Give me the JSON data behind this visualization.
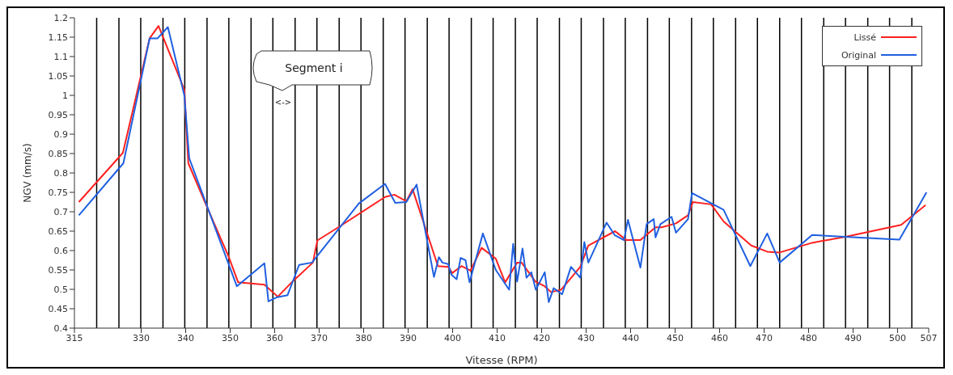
{
  "chart_data": {
    "type": "line",
    "xlabel": "Vitesse (RPM)",
    "ylabel": "NGV (mm/s)",
    "xlim": [
      315,
      507
    ],
    "xticks": [
      315,
      330,
      340,
      350,
      360,
      370,
      380,
      390,
      400,
      410,
      420,
      430,
      440,
      450,
      460,
      470,
      480,
      490,
      500,
      507
    ],
    "ylim": [
      0.4,
      1.2
    ],
    "yticks": [
      0.4,
      0.45,
      0.5,
      0.55,
      0.6,
      0.65,
      0.7,
      0.75,
      0.8,
      0.85,
      0.9,
      0.95,
      1,
      1.05,
      1.1,
      1.15,
      1.2
    ],
    "grid": false,
    "legend": "top right",
    "marker": "none",
    "line_style": "solid",
    "series": [
      {
        "name": "Lissé",
        "color": "#ff2020",
        "x": [
          316,
          325.9,
          331.9,
          333.9,
          339.7,
          340.6,
          344.7,
          349.7,
          351.8,
          357.7,
          360.7,
          364,
          368.6,
          369.6,
          374.6,
          384.8,
          386.9,
          389.6,
          391,
          396.7,
          399,
          399.9,
          402,
          404,
          406.5,
          409.7,
          411.8,
          414.5,
          415.5,
          418.6,
          420.7,
          422.1,
          424.4,
          428.7,
          430.5,
          436.5,
          439,
          442.2,
          445.6,
          447,
          450.2,
          452.9,
          454,
          458.1,
          460.9,
          467.1,
          470.7,
          473.5,
          480.8,
          488.5,
          500.8,
          506.3
        ],
        "values": [
          0.725,
          0.852,
          1.147,
          1.179,
          1.015,
          0.825,
          0.715,
          0.583,
          0.518,
          0.512,
          0.481,
          0.52,
          0.569,
          0.626,
          0.662,
          0.738,
          0.744,
          0.727,
          0.758,
          0.56,
          0.558,
          0.542,
          0.56,
          0.548,
          0.607,
          0.579,
          0.518,
          0.569,
          0.569,
          0.52,
          0.508,
          0.493,
          0.499,
          0.558,
          0.613,
          0.65,
          0.627,
          0.627,
          0.66,
          0.66,
          0.67,
          0.691,
          0.725,
          0.719,
          0.675,
          0.613,
          0.597,
          0.595,
          0.62,
          0.636,
          0.666,
          0.717
        ]
      },
      {
        "name": "Original",
        "color": "#2060e0",
        "x": [
          316,
          326,
          331.9,
          333.7,
          336,
          339.7,
          340.8,
          351.5,
          357.7,
          358.6,
          360.4,
          362.9,
          365.5,
          368.4,
          378.9,
          384.8,
          387.1,
          389.6,
          391.9,
          395.8,
          396.9,
          397.7,
          399,
          399.7,
          400.9,
          401.8,
          402.9,
          403.8,
          406.8,
          409.7,
          412.7,
          413.6,
          414.5,
          415.7,
          416.6,
          417.7,
          418.7,
          420.7,
          421.6,
          422.7,
          424.6,
          426.6,
          428.7,
          429.6,
          430.5,
          434.6,
          436.4,
          438.5,
          439.4,
          442.2,
          443.6,
          445.2,
          445.6,
          446.7,
          449.2,
          450.2,
          452.9,
          453.8,
          460.9,
          466.9,
          470.7,
          473.5,
          480.8,
          500.4,
          506.5
        ],
        "values": [
          0.691,
          0.825,
          1.147,
          1.147,
          1.176,
          1,
          0.838,
          0.508,
          0.567,
          0.469,
          0.479,
          0.485,
          0.563,
          0.569,
          0.721,
          0.772,
          0.723,
          0.725,
          0.77,
          0.532,
          0.583,
          0.569,
          0.565,
          0.538,
          0.526,
          0.581,
          0.575,
          0.518,
          0.644,
          0.55,
          0.499,
          0.617,
          0.52,
          0.605,
          0.53,
          0.544,
          0.499,
          0.544,
          0.467,
          0.503,
          0.487,
          0.558,
          0.53,
          0.622,
          0.569,
          0.672,
          0.64,
          0.627,
          0.679,
          0.556,
          0.668,
          0.681,
          0.634,
          0.668,
          0.687,
          0.646,
          0.681,
          0.748,
          0.705,
          0.56,
          0.644,
          0.569,
          0.64,
          0.628,
          0.75
        ]
      }
    ],
    "ref_lines": [
      {
        "axis": "x",
        "value": 320,
        "color": "#000000"
      },
      {
        "axis": "x",
        "value": 325,
        "color": "#000000"
      },
      {
        "axis": "x",
        "value": 329.9,
        "color": "#000000"
      },
      {
        "axis": "x",
        "value": 334.9,
        "color": "#000000"
      },
      {
        "axis": "x",
        "value": 339.8,
        "color": "#000000"
      },
      {
        "axis": "x",
        "value": 344.8,
        "color": "#000000"
      },
      {
        "axis": "x",
        "value": 349.7,
        "color": "#000000"
      },
      {
        "axis": "x",
        "value": 354.7,
        "color": "#000000"
      },
      {
        "axis": "x",
        "value": 359.6,
        "color": "#000000"
      },
      {
        "axis": "x",
        "value": 364.6,
        "color": "#000000"
      },
      {
        "axis": "x",
        "value": 369.5,
        "color": "#000000"
      },
      {
        "axis": "x",
        "value": 374.5,
        "color": "#000000"
      },
      {
        "axis": "x",
        "value": 379.4,
        "color": "#000000"
      },
      {
        "axis": "x",
        "value": 384.4,
        "color": "#000000"
      },
      {
        "axis": "x",
        "value": 389.3,
        "color": "#000000"
      },
      {
        "axis": "x",
        "value": 394.3,
        "color": "#000000"
      },
      {
        "axis": "x",
        "value": 399.2,
        "color": "#000000"
      },
      {
        "axis": "x",
        "value": 404.2,
        "color": "#000000"
      },
      {
        "axis": "x",
        "value": 409.1,
        "color": "#000000"
      },
      {
        "axis": "x",
        "value": 414.1,
        "color": "#000000"
      },
      {
        "axis": "x",
        "value": 419,
        "color": "#000000"
      },
      {
        "axis": "x",
        "value": 424,
        "color": "#000000"
      },
      {
        "axis": "x",
        "value": 428.9,
        "color": "#000000"
      },
      {
        "axis": "x",
        "value": 433.9,
        "color": "#000000"
      },
      {
        "axis": "x",
        "value": 438.8,
        "color": "#000000"
      },
      {
        "axis": "x",
        "value": 443.8,
        "color": "#000000"
      },
      {
        "axis": "x",
        "value": 448.7,
        "color": "#000000"
      },
      {
        "axis": "x",
        "value": 453.7,
        "color": "#000000"
      },
      {
        "axis": "x",
        "value": 458.6,
        "color": "#000000"
      },
      {
        "axis": "x",
        "value": 463.6,
        "color": "#000000"
      },
      {
        "axis": "x",
        "value": 468.5,
        "color": "#000000"
      },
      {
        "axis": "x",
        "value": 473.5,
        "color": "#000000"
      },
      {
        "axis": "x",
        "value": 478.4,
        "color": "#000000"
      },
      {
        "axis": "x",
        "value": 483.4,
        "color": "#000000"
      },
      {
        "axis": "x",
        "value": 488.3,
        "color": "#000000"
      },
      {
        "axis": "x",
        "value": 493.3,
        "color": "#000000"
      },
      {
        "axis": "x",
        "value": 498.2,
        "color": "#000000"
      },
      {
        "axis": "x",
        "value": 503.2,
        "color": "#000000"
      }
    ],
    "annotations": [
      "Segment i",
      "<->"
    ]
  }
}
